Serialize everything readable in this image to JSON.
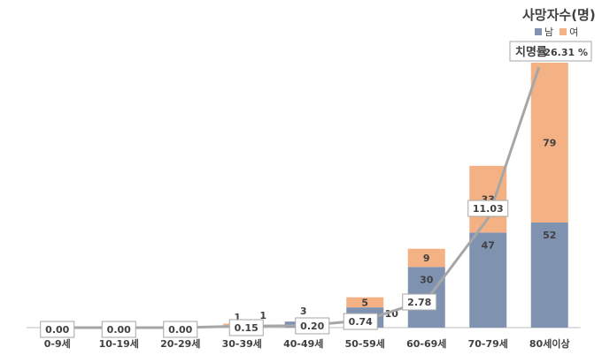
{
  "legend": {
    "title": "사망자수(명)",
    "male_label": "남",
    "female_label": "여"
  },
  "rate_label": {
    "prefix": "치명률",
    "value": "26.31 %"
  },
  "colors": {
    "male": "#7f93b1",
    "female": "#f4b183",
    "line": "#a6a6a6",
    "axis": "#bfbfbf",
    "text": "#404040"
  },
  "chart_data": {
    "type": "bar",
    "stacked": true,
    "categories": [
      "0-9세",
      "10-19세",
      "20-29세",
      "30-39세",
      "40-49세",
      "50-59세",
      "60-69세",
      "70-79세",
      "80세이상"
    ],
    "series": [
      {
        "name": "남",
        "values": [
          0,
          0,
          0,
          1,
          3,
          10,
          30,
          47,
          52
        ]
      },
      {
        "name": "여",
        "values": [
          0,
          0,
          0,
          1,
          0,
          5,
          9,
          33,
          79
        ]
      }
    ],
    "bar_labels": {
      "남": [
        "",
        "",
        "",
        "1",
        "3",
        "10",
        "30",
        "47",
        "52"
      ],
      "여": [
        "",
        "",
        "",
        "1",
        "",
        "5",
        "9",
        "33",
        "79"
      ]
    },
    "line": {
      "name": "치명률",
      "values": [
        0.0,
        0.0,
        0.0,
        0.15,
        0.2,
        0.74,
        2.78,
        11.03,
        26.31
      ],
      "labels": [
        "0.00",
        "0.00",
        "0.00",
        "0.15",
        "0.20",
        "0.74",
        "2.78",
        "11.03",
        ""
      ]
    },
    "grid": false
  }
}
